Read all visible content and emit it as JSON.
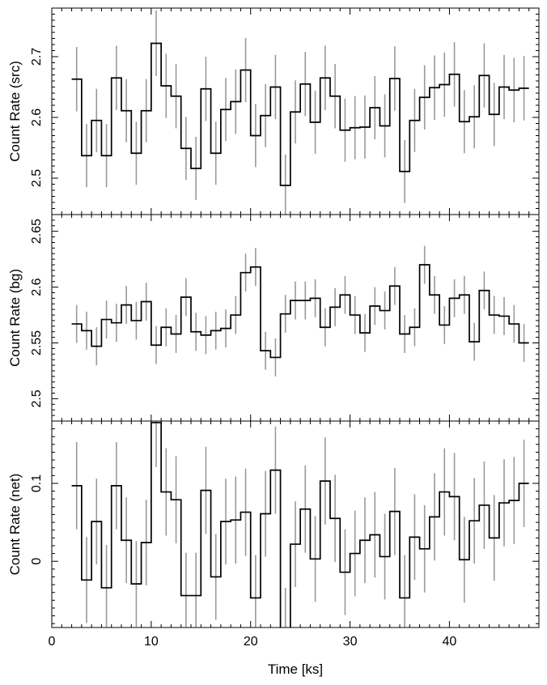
{
  "chart_data": [
    {
      "type": "line",
      "subtype": "step-with-errorbars",
      "ylabel": "Count Rate (src)",
      "xlim": [
        0,
        49
      ],
      "ylim": [
        2.44,
        2.78
      ],
      "yticks": [
        2.5,
        2.6,
        2.7
      ],
      "series": [
        {
          "x": [
            2.5,
            3.5,
            4.5,
            5.5,
            6.5,
            7.5,
            8.5,
            9.5,
            10.5,
            11.5,
            12.5,
            13.5,
            14.5,
            15.5,
            16.5,
            17.5,
            18.5,
            19.5,
            20.5,
            21.5,
            22.5,
            23.5,
            24.5,
            25.5,
            26.5,
            27.5,
            28.5,
            29.5,
            30.5,
            31.5,
            32.5,
            33.5,
            34.5,
            35.5,
            36.5,
            37.5,
            38.5,
            39.5,
            40.5,
            41.5,
            42.5,
            43.5,
            44.5,
            45.5,
            46.5,
            47.5
          ],
          "y": [
            2.663,
            2.537,
            2.595,
            2.537,
            2.665,
            2.611,
            2.541,
            2.611,
            2.722,
            2.652,
            2.635,
            2.549,
            2.516,
            2.647,
            2.541,
            2.613,
            2.626,
            2.678,
            2.57,
            2.603,
            2.65,
            2.488,
            2.609,
            2.655,
            2.592,
            2.665,
            2.635,
            2.579,
            2.583,
            2.584,
            2.616,
            2.586,
            2.664,
            2.511,
            2.595,
            2.633,
            2.649,
            2.654,
            2.671,
            2.593,
            2.601,
            2.669,
            2.605,
            2.65,
            2.645,
            2.648
          ],
          "err": [
            0.053,
            0.052,
            0.052,
            0.052,
            0.053,
            0.052,
            0.052,
            0.052,
            0.054,
            0.053,
            0.053,
            0.052,
            0.052,
            0.053,
            0.052,
            0.052,
            0.053,
            0.053,
            0.052,
            0.052,
            0.053,
            0.051,
            0.052,
            0.053,
            0.052,
            0.053,
            0.053,
            0.052,
            0.052,
            0.052,
            0.052,
            0.052,
            0.053,
            0.052,
            0.052,
            0.053,
            0.053,
            0.053,
            0.053,
            0.052,
            0.052,
            0.053,
            0.052,
            0.053,
            0.053,
            0.053
          ]
        }
      ]
    },
    {
      "type": "line",
      "subtype": "step-with-errorbars",
      "ylabel": "Count Rate (bg)",
      "xlim": [
        0,
        49
      ],
      "ylim": [
        2.48,
        2.665
      ],
      "yticks": [
        2.5,
        2.55,
        2.6,
        2.65
      ],
      "series": [
        {
          "x": [
            2.5,
            3.5,
            4.5,
            5.5,
            6.5,
            7.5,
            8.5,
            9.5,
            10.5,
            11.5,
            12.5,
            13.5,
            14.5,
            15.5,
            16.5,
            17.5,
            18.5,
            19.5,
            20.5,
            21.5,
            22.5,
            23.5,
            24.5,
            25.5,
            26.5,
            27.5,
            28.5,
            29.5,
            30.5,
            31.5,
            32.5,
            33.5,
            34.5,
            35.5,
            36.5,
            37.5,
            38.5,
            39.5,
            40.5,
            41.5,
            42.5,
            43.5,
            44.5,
            45.5,
            46.5,
            47.5
          ],
          "y": [
            2.567,
            2.561,
            2.547,
            2.571,
            2.568,
            2.584,
            2.57,
            2.587,
            2.548,
            2.564,
            2.558,
            2.591,
            2.56,
            2.557,
            2.561,
            2.563,
            2.575,
            2.613,
            2.618,
            2.543,
            2.537,
            2.576,
            2.588,
            2.588,
            2.59,
            2.564,
            2.582,
            2.593,
            2.575,
            2.559,
            2.583,
            2.579,
            2.601,
            2.558,
            2.564,
            2.62,
            2.593,
            2.566,
            2.59,
            2.593,
            2.551,
            2.597,
            2.575,
            2.574,
            2.567,
            2.55
          ],
          "err": [
            0.017,
            0.017,
            0.017,
            0.017,
            0.017,
            0.017,
            0.017,
            0.017,
            0.017,
            0.017,
            0.017,
            0.017,
            0.017,
            0.017,
            0.017,
            0.017,
            0.017,
            0.017,
            0.017,
            0.017,
            0.017,
            0.017,
            0.017,
            0.017,
            0.017,
            0.017,
            0.017,
            0.017,
            0.017,
            0.017,
            0.017,
            0.017,
            0.017,
            0.017,
            0.017,
            0.017,
            0.017,
            0.017,
            0.017,
            0.017,
            0.017,
            0.017,
            0.017,
            0.017,
            0.017,
            0.017
          ]
        }
      ]
    },
    {
      "type": "line",
      "subtype": "step-with-errorbars",
      "ylabel": "Count Rate (net)",
      "xlabel": "Time [ks]",
      "xlim": [
        0,
        49
      ],
      "xticks": [
        0,
        10,
        20,
        30,
        40
      ],
      "ylim": [
        -0.085,
        0.18
      ],
      "yticks": [
        0,
        0.1
      ],
      "series": [
        {
          "x": [
            2.5,
            3.5,
            4.5,
            5.5,
            6.5,
            7.5,
            8.5,
            9.5,
            10.5,
            11.5,
            12.5,
            13.5,
            14.5,
            15.5,
            16.5,
            17.5,
            18.5,
            19.5,
            20.5,
            21.5,
            22.5,
            23.5,
            24.5,
            25.5,
            26.5,
            27.5,
            28.5,
            29.5,
            30.5,
            31.5,
            32.5,
            33.5,
            34.5,
            35.5,
            36.5,
            37.5,
            38.5,
            39.5,
            40.5,
            41.5,
            42.5,
            43.5,
            44.5,
            45.5,
            46.5,
            47.5
          ],
          "y": [
            0.097,
            -0.024,
            0.051,
            -0.034,
            0.097,
            0.027,
            -0.029,
            0.024,
            0.178,
            0.089,
            0.079,
            -0.044,
            -0.044,
            0.091,
            -0.02,
            0.051,
            0.053,
            0.063,
            -0.047,
            0.061,
            0.117,
            -0.088,
            0.022,
            0.067,
            0.003,
            0.103,
            0.055,
            -0.014,
            0.01,
            0.027,
            0.034,
            0.006,
            0.064,
            -0.047,
            0.031,
            0.016,
            0.057,
            0.089,
            0.083,
            0.002,
            0.052,
            0.072,
            0.03,
            0.075,
            0.078,
            0.1
          ],
          "err": [
            0.056,
            0.055,
            0.055,
            0.055,
            0.056,
            0.055,
            0.055,
            0.055,
            0.057,
            0.056,
            0.056,
            0.055,
            0.055,
            0.056,
            0.055,
            0.055,
            0.056,
            0.056,
            0.055,
            0.055,
            0.056,
            0.054,
            0.055,
            0.056,
            0.055,
            0.056,
            0.056,
            0.055,
            0.055,
            0.055,
            0.055,
            0.055,
            0.056,
            0.055,
            0.055,
            0.056,
            0.056,
            0.056,
            0.056,
            0.055,
            0.055,
            0.056,
            0.055,
            0.056,
            0.056,
            0.056
          ]
        }
      ]
    }
  ]
}
